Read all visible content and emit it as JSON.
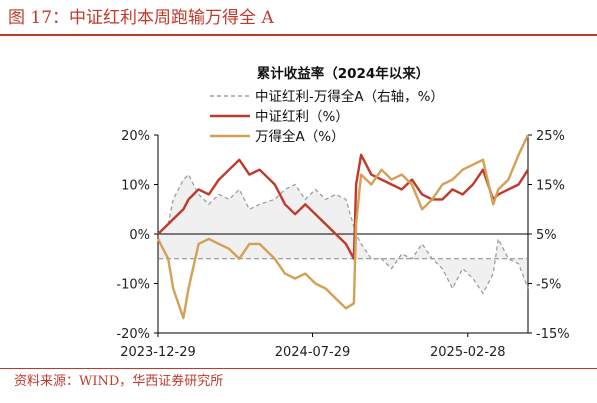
{
  "figure": {
    "title": "图 17：中证红利本周跑输万得全 A",
    "source": "资料来源：WIND，华西证券研究所"
  },
  "chart_data": {
    "type": "line",
    "title": "累计收益率（2024年以来）",
    "x_range": [
      "2023-12-29",
      "2025-05-22"
    ],
    "x_ticks": [
      "2023-12-29",
      "2024-07-29",
      "2025-02-28"
    ],
    "y_left": {
      "range": [
        -20,
        20
      ],
      "ticks": [
        "20%",
        "10%",
        "0%",
        "-10%",
        "-20%"
      ]
    },
    "y_right": {
      "range": [
        -15,
        25
      ],
      "ticks": [
        "25%",
        "15%",
        "5%",
        "-5%",
        "-15%"
      ]
    },
    "grid": false,
    "legend_position": "top-center",
    "series": [
      {
        "name": "中证红利-万得全A（右轴，%）",
        "axis": "right",
        "color": "#9e9e9e",
        "style": "dashed-area",
        "x": [
          "2023-12-29",
          "2024-01-12",
          "2024-01-19",
          "2024-02-02",
          "2024-02-09",
          "2024-02-23",
          "2024-03-08",
          "2024-03-22",
          "2024-04-05",
          "2024-04-19",
          "2024-05-03",
          "2024-05-17",
          "2024-06-07",
          "2024-06-21",
          "2024-07-05",
          "2024-07-19",
          "2024-08-02",
          "2024-08-16",
          "2024-08-30",
          "2024-09-13",
          "2024-09-27",
          "2024-10-04",
          "2024-10-18",
          "2024-11-01",
          "2024-11-15",
          "2024-11-29",
          "2024-12-13",
          "2024-12-27",
          "2025-01-10",
          "2025-01-24",
          "2025-02-07",
          "2025-02-21",
          "2025-03-07",
          "2025-03-21",
          "2025-04-04",
          "2025-04-11",
          "2025-04-25",
          "2025-05-09",
          "2025-05-22"
        ],
        "values": [
          5,
          7,
          12,
          16,
          17,
          13,
          11,
          13,
          12,
          14,
          10,
          11,
          12,
          14,
          15,
          12,
          14,
          12,
          13,
          12,
          5,
          3,
          0,
          0,
          -2,
          1,
          0,
          3,
          0,
          -2,
          -6,
          -2,
          -4,
          -7,
          -3,
          4,
          0,
          -1,
          -6
        ]
      },
      {
        "name": "中证红利（%）",
        "axis": "left",
        "color": "#c0392b",
        "style": "line",
        "x": [
          "2023-12-29",
          "2024-01-12",
          "2024-01-19",
          "2024-02-02",
          "2024-02-09",
          "2024-02-23",
          "2024-03-08",
          "2024-03-22",
          "2024-04-05",
          "2024-04-19",
          "2024-05-03",
          "2024-05-17",
          "2024-06-07",
          "2024-06-21",
          "2024-07-05",
          "2024-07-19",
          "2024-08-02",
          "2024-08-16",
          "2024-08-30",
          "2024-09-13",
          "2024-09-24",
          "2024-09-27",
          "2024-10-04",
          "2024-10-18",
          "2024-11-01",
          "2024-11-15",
          "2024-11-29",
          "2024-12-13",
          "2024-12-27",
          "2025-01-10",
          "2025-01-24",
          "2025-02-07",
          "2025-02-21",
          "2025-03-07",
          "2025-03-21",
          "2025-04-04",
          "2025-04-11",
          "2025-04-25",
          "2025-05-09",
          "2025-05-22"
        ],
        "values": [
          0,
          2,
          3,
          5,
          7,
          9,
          8,
          11,
          13,
          15,
          12,
          13,
          10,
          6,
          4,
          6,
          4,
          2,
          0,
          -2,
          -5,
          10,
          16,
          12,
          11,
          10,
          9,
          11,
          8,
          7,
          7,
          9,
          8,
          10,
          13,
          7,
          8,
          9,
          10,
          13
        ]
      },
      {
        "name": "万得全A（%）",
        "axis": "left",
        "color": "#d4a054",
        "style": "line",
        "x": [
          "2023-12-29",
          "2024-01-12",
          "2024-01-19",
          "2024-02-02",
          "2024-02-09",
          "2024-02-23",
          "2024-03-08",
          "2024-03-22",
          "2024-04-05",
          "2024-04-19",
          "2024-05-03",
          "2024-05-17",
          "2024-06-07",
          "2024-06-21",
          "2024-07-05",
          "2024-07-19",
          "2024-08-02",
          "2024-08-16",
          "2024-08-30",
          "2024-09-13",
          "2024-09-24",
          "2024-09-27",
          "2024-10-04",
          "2024-10-18",
          "2024-11-01",
          "2024-11-15",
          "2024-11-29",
          "2024-12-13",
          "2024-12-27",
          "2025-01-10",
          "2025-01-24",
          "2025-02-07",
          "2025-02-21",
          "2025-03-07",
          "2025-03-21",
          "2025-04-04",
          "2025-04-11",
          "2025-04-25",
          "2025-05-09",
          "2025-05-22"
        ],
        "values": [
          -1,
          -5,
          -11,
          -17,
          -11,
          -2,
          -1,
          -2,
          -3,
          -5,
          -2,
          -2,
          -5,
          -8,
          -9,
          -8,
          -10,
          -11,
          -13,
          -15,
          -14,
          2,
          12,
          10,
          13,
          11,
          12,
          10,
          5,
          7,
          10,
          11,
          13,
          14,
          15,
          6,
          9,
          11,
          16,
          20
        ]
      }
    ]
  }
}
